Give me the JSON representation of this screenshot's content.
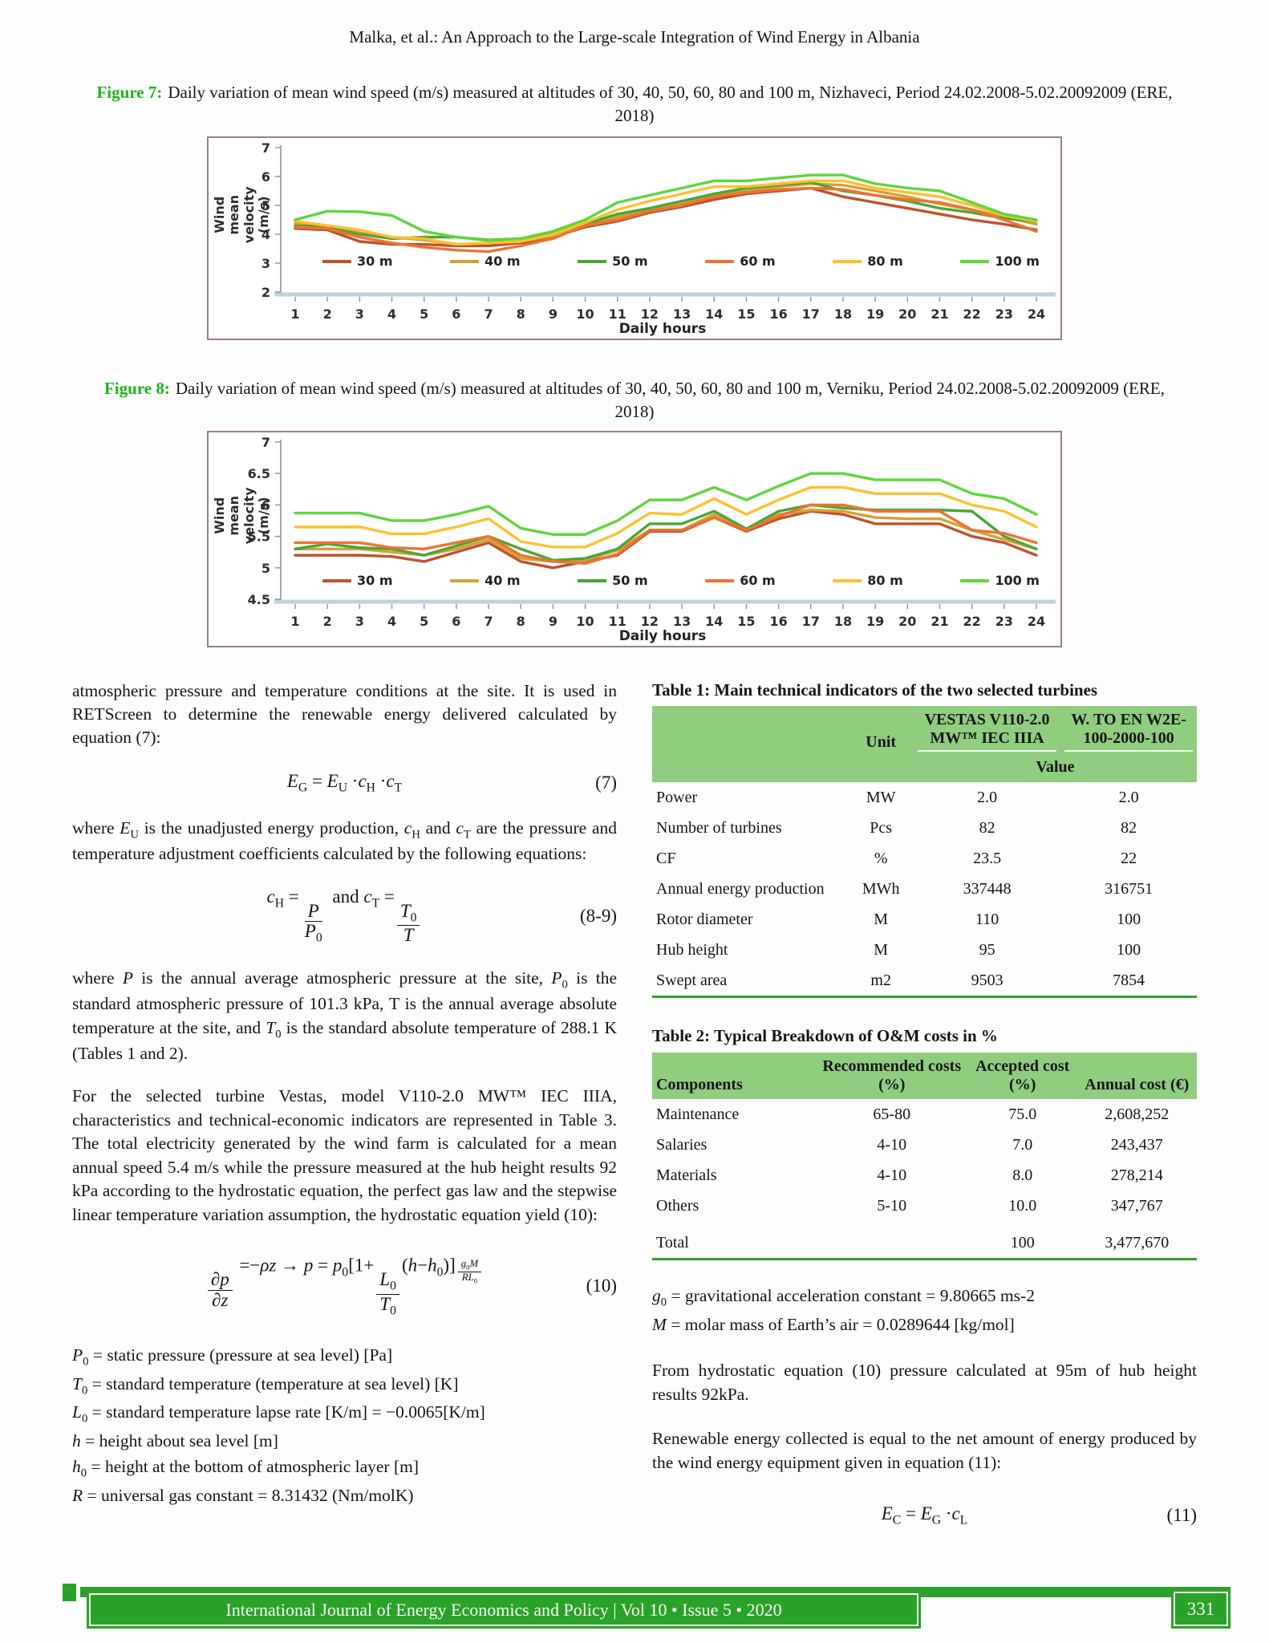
{
  "page": {
    "running_head": "Malka, et al.: An Approach to the Large-scale Integration of Wind Energy in Albania",
    "footer_text": "International Journal of Energy Economics and Policy | Vol 10 • Issue 5 • 2020",
    "page_number": "331",
    "accent_green": "#1db41d",
    "table_header_green": "#8fce7e",
    "footer_green": "#2aa22a"
  },
  "figures": [
    {
      "label": "Figure 7:",
      "caption": "Daily variation of mean wind speed (m/s) measured at altitudes of 30, 40, 50, 60, 80 and 100 m, Nizhaveci, Period 24.02.2008-5.02.20092009 (ERE, 2018)"
    },
    {
      "label": "Figure 8:",
      "caption": "Daily variation of mean wind speed (m/s) measured at altitudes of 30, 40, 50, 60, 80 and 100 m, Verniku, Period 24.02.2008-5.02.20092009 (ERE, 2018)"
    }
  ],
  "chart_data": [
    {
      "type": "line",
      "title": "",
      "xlabel": "Daily hours",
      "ylabel": "Wind mean velocity\n(m/s)",
      "x": [
        1,
        2,
        3,
        4,
        5,
        6,
        7,
        8,
        9,
        10,
        11,
        12,
        13,
        14,
        15,
        16,
        17,
        18,
        19,
        20,
        21,
        22,
        23,
        24
      ],
      "ylim": [
        2,
        7
      ],
      "ytick_step": 1,
      "grid": false,
      "legend_position": "inside-bottom",
      "legend_y": 3.02,
      "series": [
        {
          "name": "30 m",
          "color": "#bf512e",
          "values": [
            4.2,
            4.15,
            3.75,
            3.65,
            3.65,
            3.6,
            3.6,
            3.7,
            3.9,
            4.25,
            4.45,
            4.75,
            4.95,
            5.2,
            5.4,
            5.5,
            5.6,
            5.3,
            5.1,
            4.9,
            4.7,
            4.5,
            4.35,
            4.15
          ]
        },
        {
          "name": "40 m",
          "color": "#d2a237",
          "values": [
            4.4,
            4.3,
            4.05,
            3.9,
            3.8,
            3.65,
            3.7,
            3.75,
            3.95,
            4.3,
            4.6,
            4.85,
            5.05,
            5.35,
            5.5,
            5.65,
            5.75,
            5.7,
            5.5,
            5.3,
            5.05,
            4.85,
            4.6,
            4.35
          ]
        },
        {
          "name": "50 m",
          "color": "#4ca438",
          "values": [
            4.3,
            4.25,
            4.0,
            3.85,
            3.9,
            3.9,
            3.8,
            3.85,
            4.05,
            4.35,
            4.7,
            4.9,
            5.15,
            5.4,
            5.6,
            5.7,
            5.8,
            5.5,
            5.35,
            5.15,
            4.9,
            4.75,
            4.55,
            4.45
          ]
        },
        {
          "name": "60 m",
          "color": "#ee7330",
          "values": [
            4.25,
            4.2,
            3.9,
            3.7,
            3.55,
            3.45,
            3.4,
            3.6,
            3.85,
            4.3,
            4.5,
            4.8,
            5.0,
            5.3,
            5.45,
            5.55,
            5.6,
            5.55,
            5.35,
            5.2,
            5.1,
            4.85,
            4.5,
            4.1
          ]
        },
        {
          "name": "80 m",
          "color": "#fdc02f",
          "values": [
            4.45,
            4.3,
            4.15,
            3.9,
            3.85,
            3.65,
            3.7,
            3.75,
            4.0,
            4.4,
            4.85,
            5.15,
            5.4,
            5.65,
            5.65,
            5.75,
            5.85,
            5.85,
            5.6,
            5.45,
            5.3,
            5.0,
            4.65,
            4.45
          ]
        },
        {
          "name": "100 m",
          "color": "#5ed63c",
          "values": [
            4.5,
            4.8,
            4.78,
            4.65,
            4.1,
            3.9,
            3.78,
            3.85,
            4.1,
            4.5,
            5.1,
            5.35,
            5.6,
            5.85,
            5.85,
            5.95,
            6.05,
            6.05,
            5.75,
            5.6,
            5.5,
            5.1,
            4.7,
            4.5
          ]
        }
      ]
    },
    {
      "type": "line",
      "title": "",
      "xlabel": "Daily hours",
      "ylabel": "Wind mean velocity (m/s)",
      "x": [
        1,
        2,
        3,
        4,
        5,
        6,
        7,
        8,
        9,
        10,
        11,
        12,
        13,
        14,
        15,
        16,
        17,
        18,
        19,
        20,
        21,
        22,
        23,
        24
      ],
      "ylim": [
        4.5,
        7
      ],
      "ytick_step": 0.5,
      "grid": false,
      "legend_position": "inside-bottom",
      "legend_y": 4.77,
      "series": [
        {
          "name": "30 m",
          "color": "#bf512e",
          "values": [
            5.2,
            5.2,
            5.2,
            5.18,
            5.1,
            5.25,
            5.4,
            5.1,
            5.0,
            5.1,
            5.2,
            5.58,
            5.58,
            5.8,
            5.58,
            5.78,
            5.9,
            5.85,
            5.7,
            5.7,
            5.7,
            5.5,
            5.4,
            5.2
          ]
        },
        {
          "name": "40 m",
          "color": "#d2a237",
          "values": [
            5.3,
            5.3,
            5.3,
            5.25,
            5.2,
            5.3,
            5.45,
            5.15,
            5.1,
            5.12,
            5.28,
            5.6,
            5.6,
            5.85,
            5.6,
            5.85,
            5.92,
            5.9,
            5.8,
            5.78,
            5.78,
            5.6,
            5.45,
            5.3
          ]
        },
        {
          "name": "50 m",
          "color": "#4ca438",
          "values": [
            5.3,
            5.38,
            5.32,
            5.3,
            5.2,
            5.35,
            5.5,
            5.3,
            5.12,
            5.15,
            5.3,
            5.7,
            5.7,
            5.9,
            5.62,
            5.9,
            6.0,
            5.95,
            5.92,
            5.92,
            5.92,
            5.9,
            5.5,
            5.3
          ]
        },
        {
          "name": "60 m",
          "color": "#ee7330",
          "values": [
            5.4,
            5.4,
            5.4,
            5.32,
            5.3,
            5.4,
            5.5,
            5.2,
            5.1,
            5.07,
            5.22,
            5.6,
            5.6,
            5.8,
            5.6,
            5.82,
            6.0,
            6.0,
            5.9,
            5.9,
            5.9,
            5.6,
            5.55,
            5.4
          ]
        },
        {
          "name": "80 m",
          "color": "#fdc02f",
          "values": [
            5.65,
            5.65,
            5.65,
            5.54,
            5.54,
            5.65,
            5.78,
            5.42,
            5.33,
            5.33,
            5.55,
            5.87,
            5.85,
            6.1,
            5.85,
            6.08,
            6.28,
            6.28,
            6.18,
            6.18,
            6.18,
            6.0,
            5.9,
            5.65
          ]
        },
        {
          "name": "100 m",
          "color": "#5ed63c",
          "values": [
            5.87,
            5.87,
            5.87,
            5.75,
            5.75,
            5.85,
            5.98,
            5.63,
            5.53,
            5.53,
            5.75,
            6.08,
            6.08,
            6.28,
            6.08,
            6.3,
            6.5,
            6.5,
            6.4,
            6.4,
            6.4,
            6.18,
            6.1,
            5.85
          ]
        }
      ]
    }
  ],
  "left": {
    "p1": "atmospheric pressure and temperature conditions at the site. It is used in RETScreen to determine the renewable energy delivered calculated by equation (7):",
    "eq7": {
      "math": "*E*_{G} = *E*_{U} ·*c*_{H} ·*c*_{T}",
      "number": "(7)"
    },
    "p2": "where *E*_{U} is the unadjusted energy production, *c*_{H} and *c*_{T} are the pressure and temperature adjustment coefficients calculated by the following equations:",
    "eq89": {
      "math": "*c*_{H} =\\frac{*P*}{*P*_{0}} and *c*_{T} =\\frac{*T*_{0}}{*T*}",
      "number": "(8-9)"
    },
    "p3": "where *P* is the annual average atmospheric pressure at the site, *P*_{0} is the standard atmospheric pressure of 101.3 kPa, T is the annual average absolute temperature at the site, and *T*_{0} is the standard absolute temperature of 288.1 K (Tables 1 and 2).",
    "p4": "For the selected turbine Vestas, model V110-2.0 MW™ IEC IIIA, characteristics and technical-economic indicators are represented in Table 3. The total electricity generated by the wind farm is calculated for a mean annual speed 5.4 m/s while the pressure measured at the hub height results 92 kPa according to the hydrostatic equation, the perfect gas law and the stepwise linear temperature variation assumption, the hydrostatic equation yield (10):",
    "eq10": {
      "math": "\\frac{∂*p*}{∂*z*} =−*ρz* → *p* = *p*_{0}[1+\\frac{*L*_{0}}{*T*_{0}}(*h*−*h*_{0})]^{\\frac{*g*_{0}*M*}{*RL*_{0}}}",
      "number": "(10)"
    },
    "defs": [
      "*P*_{0} = static pressure (pressure at sea level) [Pa]",
      "*T*_{0} = standard temperature (temperature at sea level) [K]",
      "*L*_{0} = standard temperature lapse rate [K/m] = −0.0065[K/m]",
      "*h* = height about sea level [m]",
      "*h*_{0} = height at the bottom of atmospheric layer [m]",
      "*R* = universal gas constant = 8.31432 (Nm/molK)"
    ]
  },
  "table1": {
    "title": "Table 1: Main technical indicators of the two selected turbines",
    "col_unit": "Unit",
    "col_t1": "VESTAS V110-2.0 MW™ IEC IIIA",
    "col_t2": "W. TO EN W2E-100-2000-100",
    "value_label": "Value",
    "rows": [
      [
        "Power",
        "MW",
        "2.0",
        "2.0"
      ],
      [
        "Number of turbines",
        "Pcs",
        "82",
        "82"
      ],
      [
        "CF",
        "%",
        "23.5",
        "22"
      ],
      [
        "Annual energy production",
        "MWh",
        "337448",
        "316751"
      ],
      [
        "Rotor diameter",
        "M",
        "110",
        "100"
      ],
      [
        "Hub height",
        "M",
        "95",
        "100"
      ],
      [
        "Swept area",
        "m2",
        "9503",
        "7854"
      ]
    ]
  },
  "table2": {
    "title": "Table 2: Typical Breakdown of O&M costs in %",
    "headers": [
      "Components",
      "Recommended costs (%)",
      "Accepted cost (%)",
      "Annual cost (€)"
    ],
    "rows": [
      [
        "Maintenance",
        "65-80",
        "75.0",
        "2,608,252"
      ],
      [
        "Salaries",
        "4-10",
        "7.0",
        "243,437"
      ],
      [
        "Materials",
        "4-10",
        "8.0",
        "278,214"
      ],
      [
        "Others",
        "5-10",
        "10.0",
        "347,767"
      ],
      [
        "Total",
        "",
        "100",
        "3,477,670"
      ]
    ]
  },
  "right": {
    "g0": "*g*_{0} = gravitational acceleration constant = 9.80665 ms-2",
    "M": "*M* = molar mass of Earth’s air = 0.0289644 [kg/mol]",
    "p1": "From hydrostatic equation (10) pressure calculated at 95m of hub height results 92kPa.",
    "p2": "Renewable energy collected is equal to the net amount of energy produced by the wind energy equipment given in equation (11):",
    "eq11": {
      "math": "*E*_{C} = *E*_{G} ·*c*_{L}",
      "number": "(11)"
    }
  }
}
